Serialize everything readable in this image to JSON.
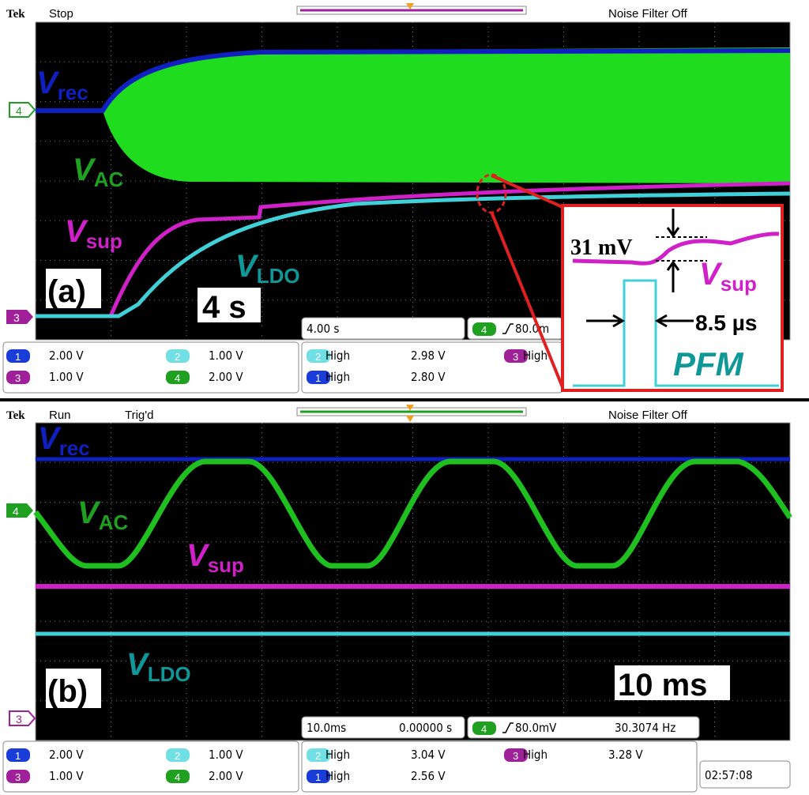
{
  "panel_a": {
    "header": {
      "brand": "Tek",
      "state": "Stop",
      "filter": "Noise Filter Off"
    },
    "markers": {
      "ch4": "4",
      "ch3": "3"
    },
    "labels": {
      "vrec": {
        "v": "V",
        "sub": "rec"
      },
      "vac": {
        "v": "V",
        "sub": "AC"
      },
      "vsup": {
        "v": "V",
        "sub": "sup"
      },
      "vldo": {
        "v": "V",
        "sub": "LDO"
      },
      "panel": "(a)",
      "time_span": "4 s"
    },
    "inset": {
      "ripple": "31 mV",
      "vsup": {
        "v": "V",
        "sub": "sup"
      },
      "pulse": "8.5 µs",
      "mode": "PFM"
    },
    "readout": {
      "timebase": "4.00 s",
      "trigger_channel": "4",
      "trigger_level": "80.0m"
    },
    "scales": [
      {
        "channel": "1",
        "value": "2.00 V"
      },
      {
        "channel": "2",
        "value": "1.00 V"
      },
      {
        "channel": "3",
        "value": "1.00 V"
      },
      {
        "channel": "4",
        "value": "2.00 V"
      }
    ],
    "measurements": [
      {
        "channel": "2",
        "type": "High",
        "value": "2.98 V"
      },
      {
        "channel": "1",
        "type": "High",
        "value": "2.80 V"
      },
      {
        "channel": "3",
        "type": "High"
      }
    ]
  },
  "panel_b": {
    "header": {
      "brand": "Tek",
      "state": "Run",
      "trigger": "Trig'd",
      "filter": "Noise Filter Off"
    },
    "markers": {
      "ch4": "4",
      "ch3": "3"
    },
    "labels": {
      "vrec": {
        "v": "V",
        "sub": "rec"
      },
      "vac": {
        "v": "V",
        "sub": "AC"
      },
      "vsup": {
        "v": "V",
        "sub": "sup"
      },
      "vldo": {
        "v": "V",
        "sub": "LDO"
      },
      "panel": "(b)",
      "time_span": "10 ms"
    },
    "readout": {
      "timebase": "10.0ms",
      "position": "0.00000 s",
      "trigger_channel": "4",
      "trigger_level": "80.0mV",
      "frequency": "30.3074 Hz"
    },
    "scales": [
      {
        "channel": "1",
        "value": "2.00 V"
      },
      {
        "channel": "2",
        "value": "1.00 V"
      },
      {
        "channel": "3",
        "value": "1.00 V"
      },
      {
        "channel": "4",
        "value": "2.00 V"
      }
    ],
    "measurements": [
      {
        "channel": "2",
        "type": "High",
        "value": "3.04 V"
      },
      {
        "channel": "1",
        "type": "High",
        "value": "2.56 V"
      },
      {
        "channel": "3",
        "type": "High",
        "value": "3.28 V"
      }
    ],
    "clock": "02:57:08"
  }
}
